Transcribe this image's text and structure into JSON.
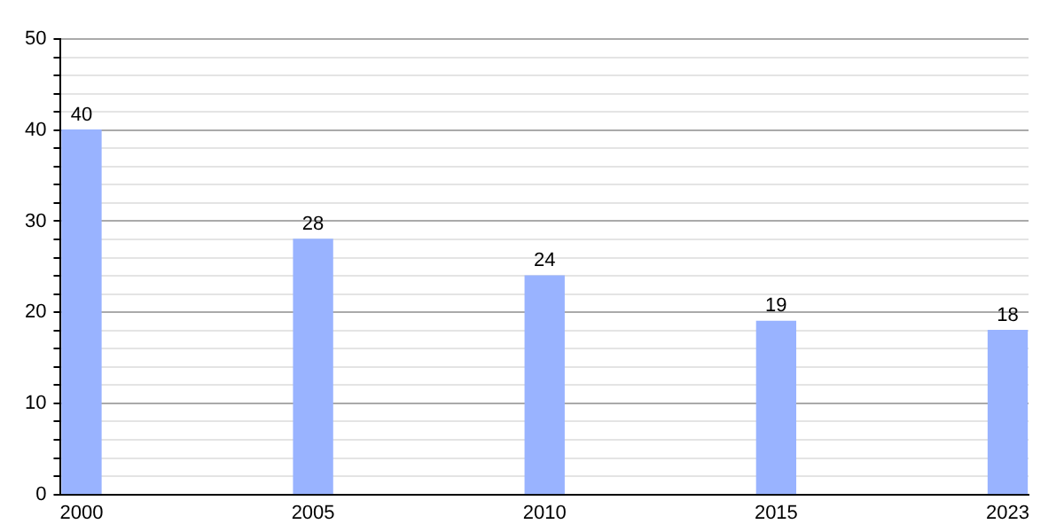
{
  "chart_data": {
    "type": "bar",
    "categories": [
      "2000",
      "2005",
      "2010",
      "2015",
      "2023"
    ],
    "values": [
      40,
      28,
      24,
      19,
      18
    ],
    "color": "#99b3ff",
    "ylim": [
      0,
      50
    ],
    "yticks": [
      0,
      {
        "value": 2,
        "label": null
      },
      {
        "value": 4,
        "label": null
      },
      {
        "value": 6,
        "label": null
      },
      {
        "value": 8,
        "label": null
      },
      10,
      {
        "value": 12,
        "label": null
      },
      {
        "value": 14,
        "label": null
      },
      {
        "value": 16,
        "label": null
      },
      {
        "value": 18,
        "label": null
      },
      20,
      {
        "value": 22,
        "label": null
      },
      {
        "value": 24,
        "label": null
      },
      {
        "value": 26,
        "label": null
      },
      {
        "value": 28,
        "label": null
      },
      30,
      {
        "value": 32,
        "label": null
      },
      {
        "value": 34,
        "label": null
      },
      {
        "value": 36,
        "label": null
      },
      {
        "value": 38,
        "label": null
      },
      40,
      {
        "value": 42,
        "label": null
      },
      {
        "value": 44,
        "label": null
      },
      {
        "value": 46,
        "label": null
      },
      {
        "value": 48,
        "label": null
      },
      50
    ],
    "grid": "y",
    "data_labels": true
  }
}
